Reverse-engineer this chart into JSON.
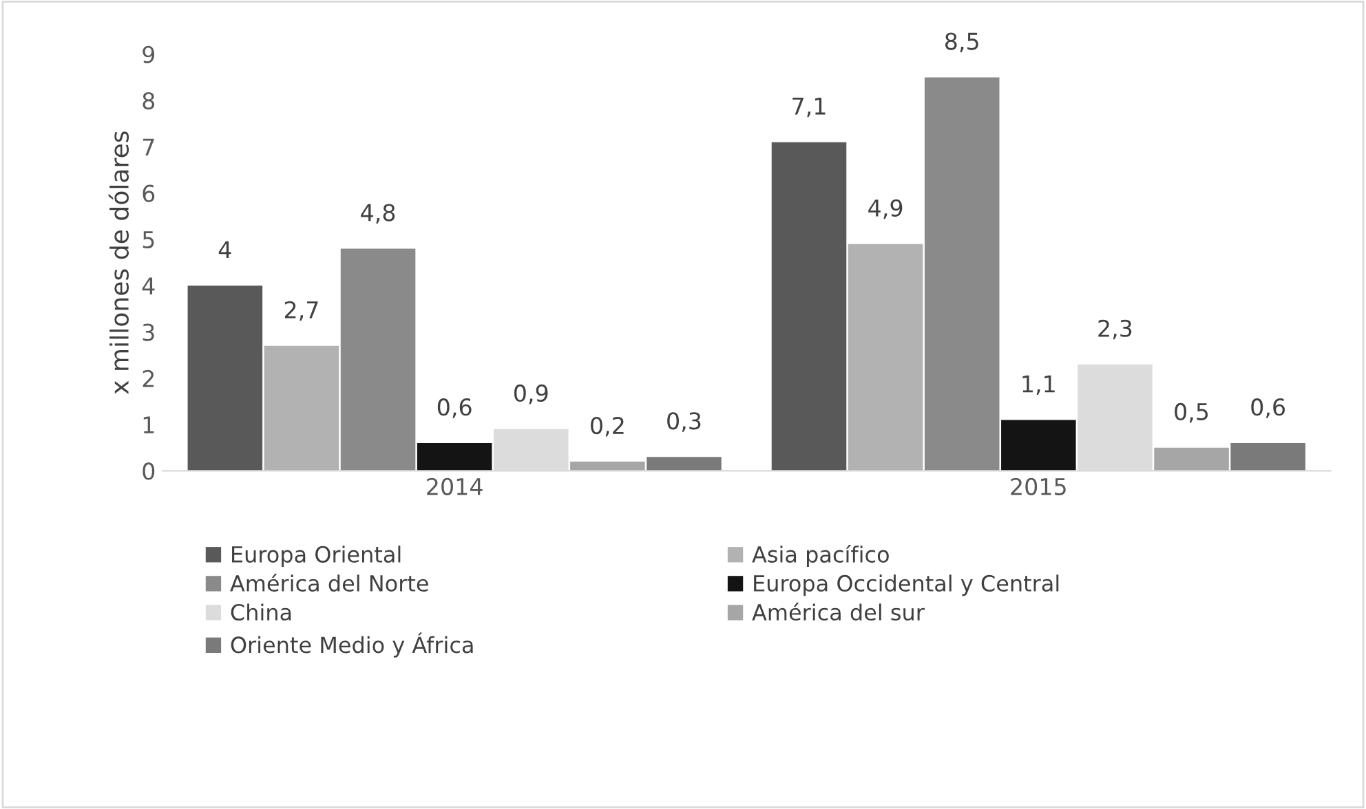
{
  "chart_data": {
    "type": "bar",
    "ylabel": "x millones de dólares",
    "categories": [
      "2014",
      "2015"
    ],
    "series": [
      {
        "name": "Europa Oriental",
        "color": "#595959",
        "values": [
          4,
          7.1
        ],
        "value_labels": [
          "4",
          "7,1"
        ]
      },
      {
        "name": "Asia pacífico",
        "color": "#b2b2b2",
        "values": [
          2.7,
          4.9
        ],
        "value_labels": [
          "2,7",
          "4,9"
        ]
      },
      {
        "name": "América del Norte",
        "color": "#8a8a8a",
        "values": [
          4.8,
          8.5
        ],
        "value_labels": [
          "4,8",
          "8,5"
        ]
      },
      {
        "name": "Europa Occidental y Central",
        "color": "#141414",
        "values": [
          0.6,
          1.1
        ],
        "value_labels": [
          "0,6",
          "1,1"
        ]
      },
      {
        "name": "China",
        "color": "#dcdcdc",
        "values": [
          0.9,
          2.3
        ],
        "value_labels": [
          "0,9",
          "2,3"
        ]
      },
      {
        "name": "América del sur",
        "color": "#a6a6a6",
        "values": [
          0.2,
          0.5
        ],
        "value_labels": [
          "0,2",
          "0,5"
        ]
      },
      {
        "name": "Oriente Medio y África",
        "color": "#7a7a7a",
        "values": [
          0.3,
          0.6
        ],
        "value_labels": [
          "0,3",
          "0,6"
        ]
      }
    ],
    "ylim": [
      0,
      9
    ],
    "yticks": [
      0,
      1,
      2,
      3,
      4,
      5,
      6,
      7,
      8,
      9
    ],
    "grid": false,
    "legend": "bottom"
  }
}
